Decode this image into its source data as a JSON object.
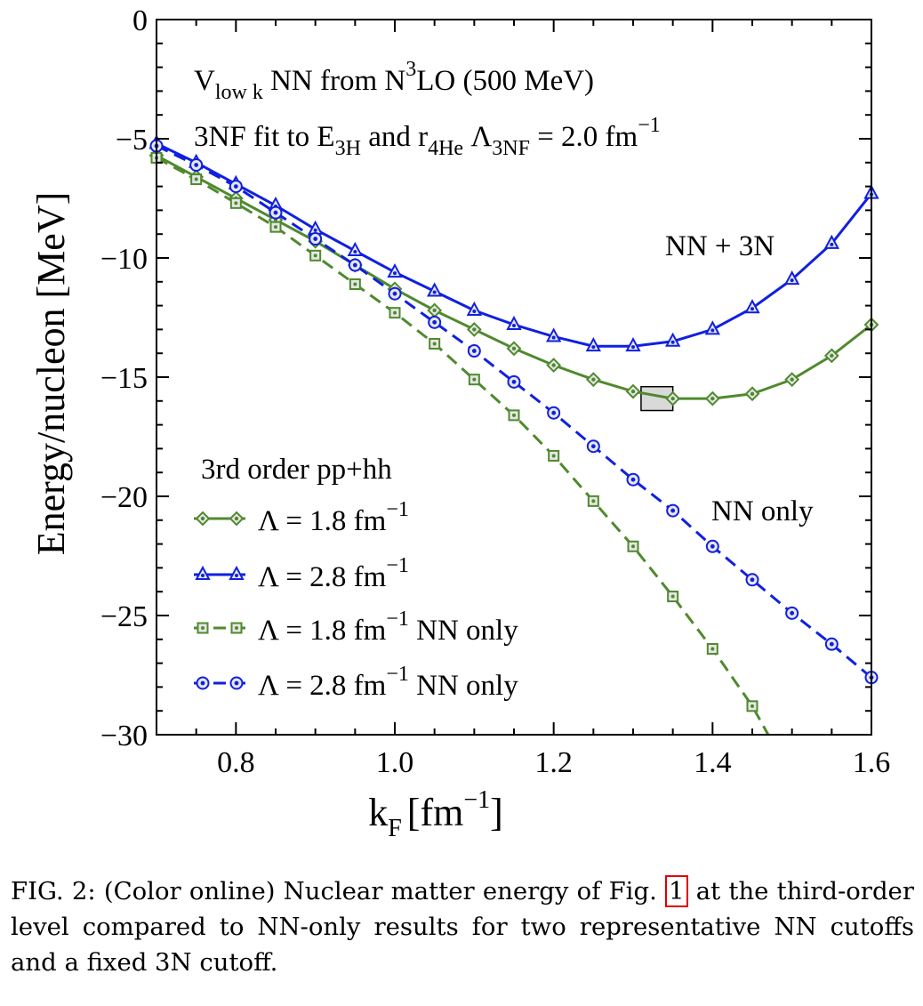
{
  "chart_data": {
    "type": "line",
    "xlabel_main": "k",
    "xlabel_sub": "F",
    "xlabel_unit": "[fm",
    "xlabel_exp": "−1",
    "xlabel_close": "]",
    "ylabel": "Energy/nucleon [MeV]",
    "xlim": [
      0.7,
      1.6
    ],
    "ylim": [
      -30,
      0
    ],
    "xticks": [
      0.8,
      1.0,
      1.2,
      1.4,
      1.6
    ],
    "xtick_labels": [
      "0.8",
      "1.0",
      "1.2",
      "1.4",
      "1.6"
    ],
    "yticks": [
      0,
      -5,
      -10,
      -15,
      -20,
      -25,
      -30
    ],
    "ytick_labels": [
      "0",
      "−5",
      "−10",
      "−15",
      "−20",
      "−25",
      "−30"
    ],
    "series": [
      {
        "name": "Λ = 1.8 fm−1",
        "color": "#4f8a2e",
        "dash": false,
        "marker": "diamond",
        "x": [
          0.7,
          0.75,
          0.8,
          0.85,
          0.9,
          0.95,
          1.0,
          1.05,
          1.1,
          1.15,
          1.2,
          1.25,
          1.3,
          1.35,
          1.4,
          1.45,
          1.5,
          1.55,
          1.6
        ],
        "y": [
          -5.7,
          -6.6,
          -7.5,
          -8.4,
          -9.3,
          -10.3,
          -11.3,
          -12.2,
          -13.0,
          -13.8,
          -14.5,
          -15.1,
          -15.6,
          -15.9,
          -15.9,
          -15.7,
          -15.1,
          -14.1,
          -12.8
        ]
      },
      {
        "name": "Λ = 2.8 fm−1",
        "color": "#1020e0",
        "dash": false,
        "marker": "triangle",
        "x": [
          0.7,
          0.75,
          0.8,
          0.85,
          0.9,
          0.95,
          1.0,
          1.05,
          1.1,
          1.15,
          1.2,
          1.25,
          1.3,
          1.35,
          1.4,
          1.45,
          1.5,
          1.55,
          1.6
        ],
        "y": [
          -5.2,
          -6.0,
          -6.9,
          -7.8,
          -8.8,
          -9.7,
          -10.6,
          -11.4,
          -12.2,
          -12.8,
          -13.3,
          -13.7,
          -13.7,
          -13.5,
          -13.0,
          -12.1,
          -10.9,
          -9.4,
          -7.3
        ]
      },
      {
        "name": "Λ = 1.8 fm−1 NN only",
        "color": "#4f8a2e",
        "dash": true,
        "marker": "square",
        "x": [
          0.7,
          0.75,
          0.8,
          0.85,
          0.9,
          0.95,
          1.0,
          1.05,
          1.1,
          1.15,
          1.2,
          1.25,
          1.3,
          1.35,
          1.4,
          1.45,
          1.47
        ],
        "y": [
          -5.8,
          -6.7,
          -7.7,
          -8.7,
          -9.9,
          -11.1,
          -12.3,
          -13.6,
          -15.1,
          -16.6,
          -18.3,
          -20.2,
          -22.1,
          -24.2,
          -26.4,
          -28.8,
          -30.0
        ]
      },
      {
        "name": "Λ = 2.8 fm−1 NN only",
        "color": "#1020e0",
        "dash": true,
        "marker": "circle",
        "x": [
          0.7,
          0.75,
          0.8,
          0.85,
          0.9,
          0.95,
          1.0,
          1.05,
          1.1,
          1.15,
          1.2,
          1.25,
          1.3,
          1.35,
          1.4,
          1.45,
          1.5,
          1.55,
          1.6
        ],
        "y": [
          -5.3,
          -6.1,
          -7.0,
          -8.1,
          -9.2,
          -10.3,
          -11.5,
          -12.7,
          -13.9,
          -15.2,
          -16.5,
          -17.9,
          -19.3,
          -20.6,
          -22.1,
          -23.5,
          -24.9,
          -26.2,
          -27.6
        ]
      }
    ],
    "markers_shown": [
      [
        true,
        true,
        true,
        true,
        true,
        true,
        true,
        true,
        true,
        true,
        true,
        true,
        true,
        true,
        true,
        true,
        true,
        true,
        true
      ],
      [
        true,
        true,
        true,
        true,
        true,
        true,
        true,
        true,
        true,
        true,
        true,
        true,
        true,
        true,
        true,
        true,
        true,
        true,
        true
      ],
      [
        true,
        true,
        true,
        true,
        true,
        true,
        true,
        true,
        true,
        true,
        true,
        true,
        true,
        true,
        true,
        true,
        false
      ],
      [
        true,
        true,
        true,
        true,
        true,
        true,
        true,
        true,
        true,
        true,
        true,
        true,
        true,
        true,
        true,
        true,
        true,
        true,
        true
      ]
    ],
    "box": {
      "x": [
        1.31,
        1.35
      ],
      "y": [
        -16.4,
        -15.4
      ],
      "fill": "#d9d9d9"
    },
    "annotations": {
      "line1": {
        "V": "V",
        "V_sub": "low k",
        "rest": " NN  from N",
        "sup": "3",
        "tail": "LO (500 MeV)"
      },
      "line2": {
        "a": "3NF fit to E",
        "sub1": "3H",
        "b": " and r",
        "sub2": "4He",
        "c": "  Λ",
        "sub3": "3NF",
        "d": " = 2.0 fm",
        "sup": "−1"
      },
      "nn3n": "NN + 3N",
      "nnonly": "NN only",
      "legend_title": "3rd order pp+hh",
      "legend_title_color": "#cc0000",
      "legend": [
        {
          "lead": "Λ = 1.8 fm",
          "sup": "−1",
          "tail": ""
        },
        {
          "lead": "Λ = 2.8 fm",
          "sup": "−1",
          "tail": ""
        },
        {
          "lead": "Λ = 1.8 fm",
          "sup": "−1",
          "tail": " NN only"
        },
        {
          "lead": "Λ = 2.8 fm",
          "sup": "−1",
          "tail": " NN only"
        }
      ]
    }
  },
  "caption": {
    "before": "FIG. 2: (Color online) Nuclear matter energy of Fig. ",
    "ref": "1",
    "after": " at the third-order level compared to NN-only results for two representative NN cutoffs and a fixed 3N cutoff."
  }
}
